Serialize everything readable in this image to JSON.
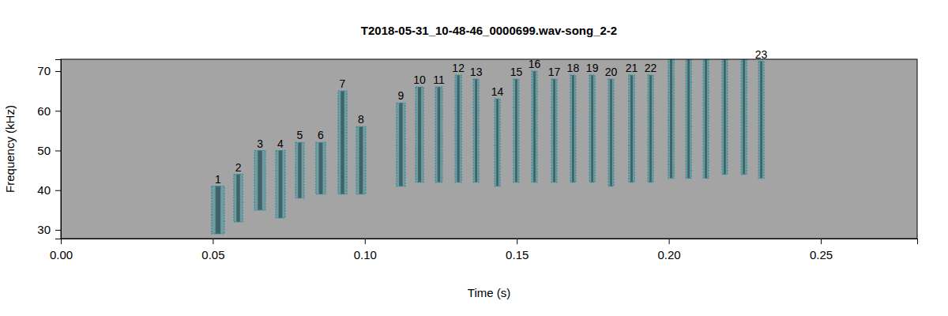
{
  "chart_data": {
    "type": "spectrogram",
    "title": "T2018-05-31_10-48-46_0000699.wav-song_2-2",
    "x_label": "Time (s)",
    "y_label": "Frequency (kHz)",
    "xlim": [
      0,
      0.2817
    ],
    "ylim": [
      27.8,
      73
    ],
    "xticks": [
      {
        "value": 0,
        "label": "0.00"
      },
      {
        "value": 0.05,
        "label": "0.05"
      },
      {
        "value": 0.1,
        "label": "0.10"
      },
      {
        "value": 0.15,
        "label": "0.15"
      },
      {
        "value": 0.2,
        "label": "0.20"
      },
      {
        "value": 0.25,
        "label": "0.25"
      }
    ],
    "yticks": [
      30,
      40,
      50,
      60,
      70
    ],
    "color": "#2a8f9c",
    "boxes": [
      {
        "label": "1",
        "start": 0.0496,
        "end": 0.0538,
        "low": 29,
        "high": 41
      },
      {
        "label": "2",
        "start": 0.0569,
        "end": 0.0598,
        "low": 32,
        "high": 44
      },
      {
        "label": "3",
        "start": 0.0637,
        "end": 0.0673,
        "low": 35,
        "high": 50
      },
      {
        "label": "4",
        "start": 0.0707,
        "end": 0.0738,
        "low": 33,
        "high": 50
      },
      {
        "label": "5",
        "start": 0.0772,
        "end": 0.08,
        "low": 38,
        "high": 52
      },
      {
        "label": "6",
        "start": 0.0839,
        "end": 0.0871,
        "low": 39,
        "high": 52
      },
      {
        "label": "7",
        "start": 0.0912,
        "end": 0.0941,
        "low": 39,
        "high": 65
      },
      {
        "label": "8",
        "start": 0.0972,
        "end": 0.1003,
        "low": 39,
        "high": 56
      },
      {
        "label": "9",
        "start": 0.1104,
        "end": 0.1133,
        "low": 41,
        "high": 62
      },
      {
        "label": "10",
        "start": 0.1167,
        "end": 0.1193,
        "low": 42,
        "high": 66
      },
      {
        "label": "11",
        "start": 0.1232,
        "end": 0.1255,
        "low": 42,
        "high": 66
      },
      {
        "label": "12",
        "start": 0.1297,
        "end": 0.1318,
        "low": 42,
        "high": 69
      },
      {
        "label": "13",
        "start": 0.1357,
        "end": 0.1375,
        "low": 42,
        "high": 68
      },
      {
        "label": "14",
        "start": 0.1427,
        "end": 0.1445,
        "low": 41,
        "high": 63
      },
      {
        "label": "15",
        "start": 0.1489,
        "end": 0.1507,
        "low": 42,
        "high": 68
      },
      {
        "label": "16",
        "start": 0.1549,
        "end": 0.1567,
        "low": 42,
        "high": 70
      },
      {
        "label": "17",
        "start": 0.1614,
        "end": 0.1632,
        "low": 42,
        "high": 68
      },
      {
        "label": "18",
        "start": 0.1676,
        "end": 0.1694,
        "low": 42,
        "high": 69
      },
      {
        "label": "19",
        "start": 0.1739,
        "end": 0.1757,
        "low": 42,
        "high": 69
      },
      {
        "label": "20",
        "start": 0.1801,
        "end": 0.1819,
        "low": 41,
        "high": 68
      },
      {
        "label": "21",
        "start": 0.1868,
        "end": 0.1887,
        "low": 42,
        "high": 69
      },
      {
        "label": "22",
        "start": 0.1931,
        "end": 0.1949,
        "low": 42,
        "high": 69
      },
      {
        "label": null,
        "start": 0.1998,
        "end": 0.2017,
        "low": 43,
        "high": 73
      },
      {
        "label": null,
        "start": 0.2056,
        "end": 0.2074,
        "low": 43,
        "high": 73
      },
      {
        "label": null,
        "start": 0.2113,
        "end": 0.2131,
        "low": 43,
        "high": 73
      },
      {
        "label": null,
        "start": 0.2175,
        "end": 0.2193,
        "low": 44,
        "high": 73
      },
      {
        "label": null,
        "start": 0.2238,
        "end": 0.2256,
        "low": 44,
        "high": 73
      },
      {
        "label": "23",
        "start": 0.2295,
        "end": 0.2313,
        "low": 43,
        "high": 72.5
      }
    ]
  }
}
